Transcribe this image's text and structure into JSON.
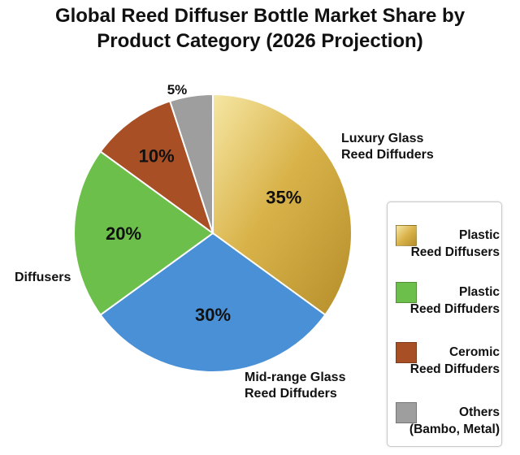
{
  "chart_data": {
    "type": "pie",
    "title": [
      "Global Reed Diffuser Bottle Market Share by",
      "Product Category (2026 Projection)"
    ],
    "slices": [
      {
        "label": [
          "Luxury Glass",
          "Reed Diffuders"
        ],
        "value": 35,
        "value_label": "35%",
        "color": "#d9b34a",
        "gradient": [
          "#f6e7a4",
          "#b58e2a"
        ],
        "label_position": "right"
      },
      {
        "label": [
          "Mid-range Glass",
          "Reed Diffuders"
        ],
        "value": 30,
        "value_label": "30%",
        "color": "#4a90d6",
        "label_position": "bottom-right"
      },
      {
        "label": [
          "Diffusers"
        ],
        "value": 20,
        "value_label": "20%",
        "color": "#6cbf4a",
        "label_position": "left"
      },
      {
        "label": [],
        "value": 10,
        "value_label": "10%",
        "color": "#a94f25",
        "label_position": "left"
      },
      {
        "label": [],
        "value": 5,
        "value_label": "5%",
        "color": "#9e9e9e",
        "label_position": "top"
      }
    ],
    "legend": {
      "placement": "right",
      "items": [
        {
          "text": [
            "Plastic",
            "Reed Diffusers"
          ],
          "color": "#d9b34a",
          "gradient": [
            "#f6e7a4",
            "#b58e2a"
          ]
        },
        {
          "text": [
            "Plastic",
            "Reed Diffuders"
          ],
          "color": "#6cbf4a"
        },
        {
          "text": [
            "Ceromic",
            "Reed Diffuders"
          ],
          "color": "#a94f25"
        },
        {
          "text": [
            "Others",
            "(Bambo, Metal)"
          ],
          "color": "#9e9e9e"
        }
      ]
    }
  }
}
